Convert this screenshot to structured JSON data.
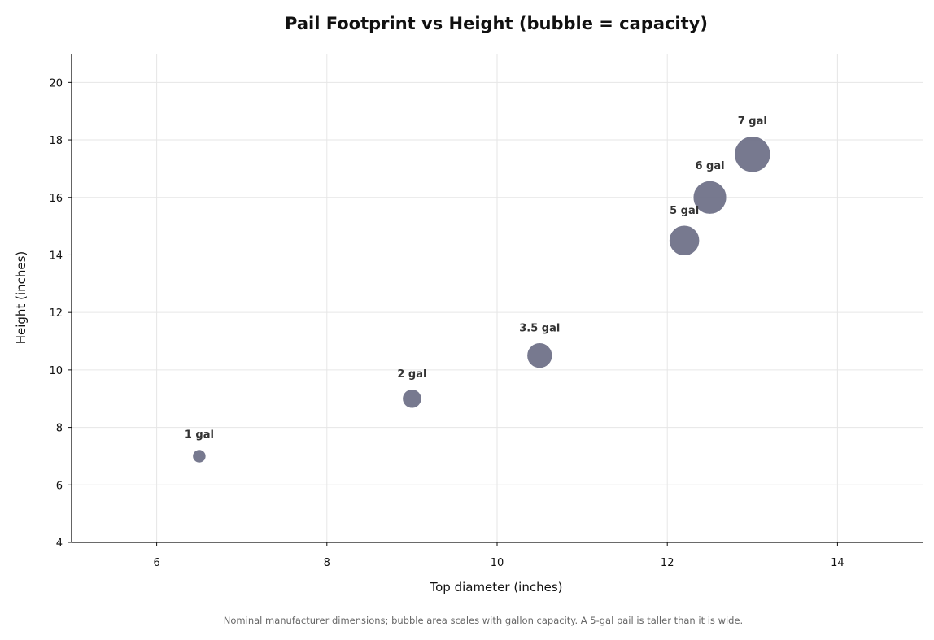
{
  "chart_data": {
    "type": "scatter",
    "title": "Pail Footprint vs Height (bubble = capacity)",
    "xlabel": "Top diameter (inches)",
    "ylabel": "Height (inches)",
    "xlim": [
      5,
      15
    ],
    "ylim": [
      4,
      21
    ],
    "xticks": [
      6,
      8,
      10,
      12,
      14
    ],
    "yticks": [
      4,
      6,
      8,
      10,
      12,
      14,
      16,
      18,
      20
    ],
    "grid": true,
    "legend": "none",
    "points": [
      {
        "label": "1 gal",
        "x": 6.5,
        "y": 7.0,
        "size": 1
      },
      {
        "label": "2 gal",
        "x": 9.0,
        "y": 9.0,
        "size": 2
      },
      {
        "label": "3.5 gal",
        "x": 10.5,
        "y": 10.5,
        "size": 3.5
      },
      {
        "label": "5 gal",
        "x": 12.2,
        "y": 14.5,
        "size": 5
      },
      {
        "label": "6 gal",
        "x": 12.5,
        "y": 16.0,
        "size": 6
      },
      {
        "label": "7 gal",
        "x": 13.0,
        "y": 17.5,
        "size": 7
      }
    ],
    "footnote": "Nominal manufacturer dimensions; bubble area scales with gallon capacity. A 5-gal pail is taller than it is wide.",
    "colors": {
      "bubble_fill": "#6b6e85",
      "bubble_stroke": "#ffffff",
      "grid": "#e6e6e6",
      "axis": "#111111"
    }
  }
}
